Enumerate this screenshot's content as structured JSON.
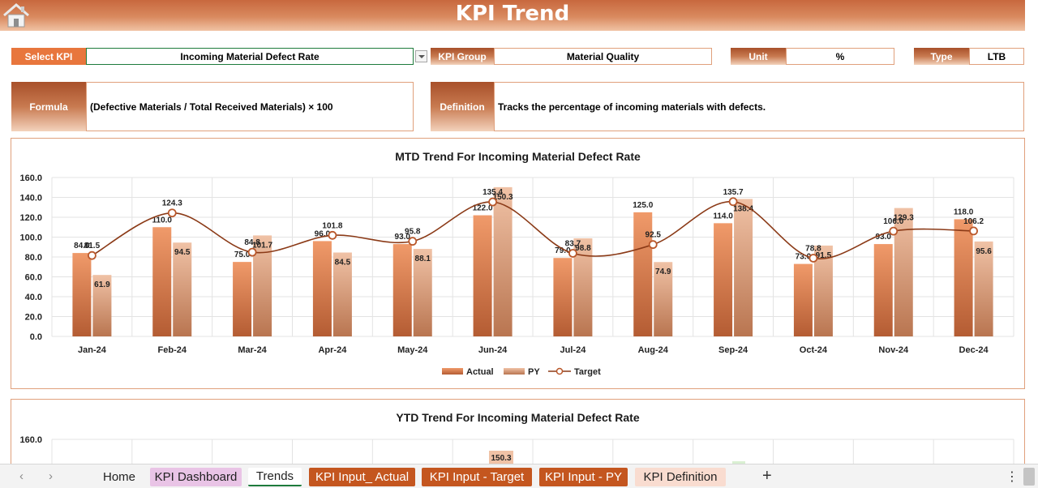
{
  "header": {
    "title": "KPI Trend",
    "home_icon": "home-icon"
  },
  "selectors": {
    "select_kpi_label": "Select KPI",
    "select_kpi_value": "Incoming Material Defect Rate",
    "kpi_group_label": "KPI Group",
    "kpi_group_value": "Material Quality",
    "unit_label": "Unit",
    "unit_value": "%",
    "type_label": "Type",
    "type_value": "LTB"
  },
  "info": {
    "formula_label": "Formula",
    "formula_value": "(Defective Materials / Total Received Materials) × 100",
    "definition_label": "Definition",
    "definition_value": "Tracks the percentage of incoming materials with defects."
  },
  "colors": {
    "accent": "#e8763d",
    "border": "#e0a07c",
    "target_line": "#8b3a17"
  },
  "chart_data": [
    {
      "type": "bar",
      "title": "MTD Trend For Incoming Material Defect Rate",
      "categories": [
        "Jan-24",
        "Feb-24",
        "Mar-24",
        "Apr-24",
        "May-24",
        "Jun-24",
        "Jul-24",
        "Aug-24",
        "Sep-24",
        "Oct-24",
        "Nov-24",
        "Dec-24"
      ],
      "series": [
        {
          "name": "Actual",
          "kind": "bar",
          "values": [
            84.0,
            110.0,
            75.0,
            96.0,
            93.0,
            122.0,
            79.0,
            125.0,
            114.0,
            73.0,
            93.0,
            118.0
          ]
        },
        {
          "name": "PY",
          "kind": "bar",
          "values": [
            61.9,
            94.5,
            101.7,
            84.5,
            88.1,
            150.3,
            98.8,
            74.9,
            138.4,
            91.5,
            129.3,
            95.6
          ]
        },
        {
          "name": "Target",
          "kind": "line",
          "values": [
            81.5,
            124.3,
            84.8,
            101.8,
            95.8,
            135.4,
            83.7,
            92.5,
            135.7,
            78.8,
            106.0,
            106.2
          ]
        }
      ],
      "ylim": [
        0,
        160
      ],
      "yticks": [
        "0.0",
        "20.0",
        "40.0",
        "60.0",
        "80.0",
        "100.0",
        "120.0",
        "140.0",
        "160.0"
      ],
      "legend": "bottom",
      "grid": true
    },
    {
      "type": "bar",
      "title": "YTD Trend For Incoming Material Defect Rate",
      "visible_ytick": "160.0",
      "visible_label": "150.3",
      "grid": true
    }
  ],
  "tabs": {
    "home": "Home",
    "kpi_dashboard": "KPI Dashboard",
    "trends": "Trends",
    "kpi_input_actual": "KPI Input_ Actual",
    "kpi_input_target": "KPI Input - Target",
    "kpi_input_py": "KPI Input - PY",
    "kpi_definition": "KPI Definition",
    "add_sheet": "+",
    "more": "⋮",
    "prev": "‹",
    "next": "›"
  }
}
